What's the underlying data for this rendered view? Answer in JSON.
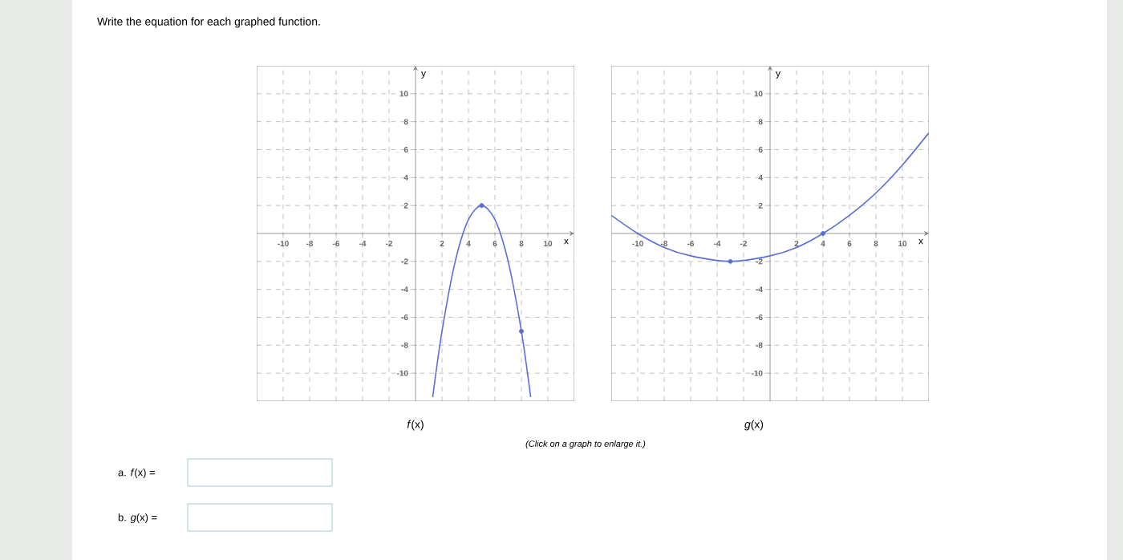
{
  "chart_data": [
    {
      "type": "line",
      "xlabel": "x",
      "ylabel": "y",
      "xlim": [
        -12,
        12
      ],
      "ylim": [
        -12,
        12
      ],
      "xticks": [
        -10,
        -8,
        -6,
        -4,
        -2,
        2,
        4,
        6,
        8,
        10
      ],
      "yticks": [
        -10,
        -8,
        -6,
        -4,
        -2,
        2,
        4,
        6,
        8,
        10
      ],
      "grid": true,
      "series": [
        {
          "color": "#5a6fd6",
          "marker": "none",
          "x": [
            1.3,
            2,
            3,
            4,
            5,
            6,
            7,
            8,
            8.7
          ],
          "values": [
            -11.7,
            -7,
            -2,
            1,
            2,
            1,
            -2,
            -7,
            -11.7
          ]
        },
        {
          "type": "scatter",
          "color": "#5a6fd6",
          "marker": "circle",
          "x": [
            5,
            8
          ],
          "values": [
            2,
            -7
          ]
        }
      ],
      "annotations": [
        "*f*(x)",
        "Write the equation for each graphed function.",
        "(Click on a graph to enlarge it.)",
        "a. *f*(x) =",
        "b. *g*(x) ="
      ]
    },
    {
      "type": "line",
      "xlabel": "x",
      "ylabel": "y",
      "xlim": [
        -12,
        12
      ],
      "ylim": [
        -12,
        12
      ],
      "xticks": [
        -10,
        -8,
        -6,
        -4,
        -2,
        2,
        4,
        6,
        8,
        10
      ],
      "yticks": [
        -10,
        -8,
        -6,
        -4,
        -2,
        2,
        4,
        6,
        8,
        10
      ],
      "grid": true,
      "series": [
        {
          "color": "#5a6fd6",
          "marker": "none",
          "x": [
            -12,
            -10,
            -8,
            -6,
            -3,
            0,
            2,
            4,
            6,
            8,
            10,
            12
          ],
          "values": [
            1.3,
            0,
            -1,
            -1.6,
            -2,
            -1.6,
            -1,
            0,
            1.3,
            2.9,
            4.9,
            7.2
          ]
        },
        {
          "type": "scatter",
          "color": "#5a6fd6",
          "marker": "circle",
          "x": [
            -3,
            4
          ],
          "values": [
            -2,
            0
          ]
        }
      ],
      "annotations": [
        "*g*(x)"
      ]
    }
  ]
}
